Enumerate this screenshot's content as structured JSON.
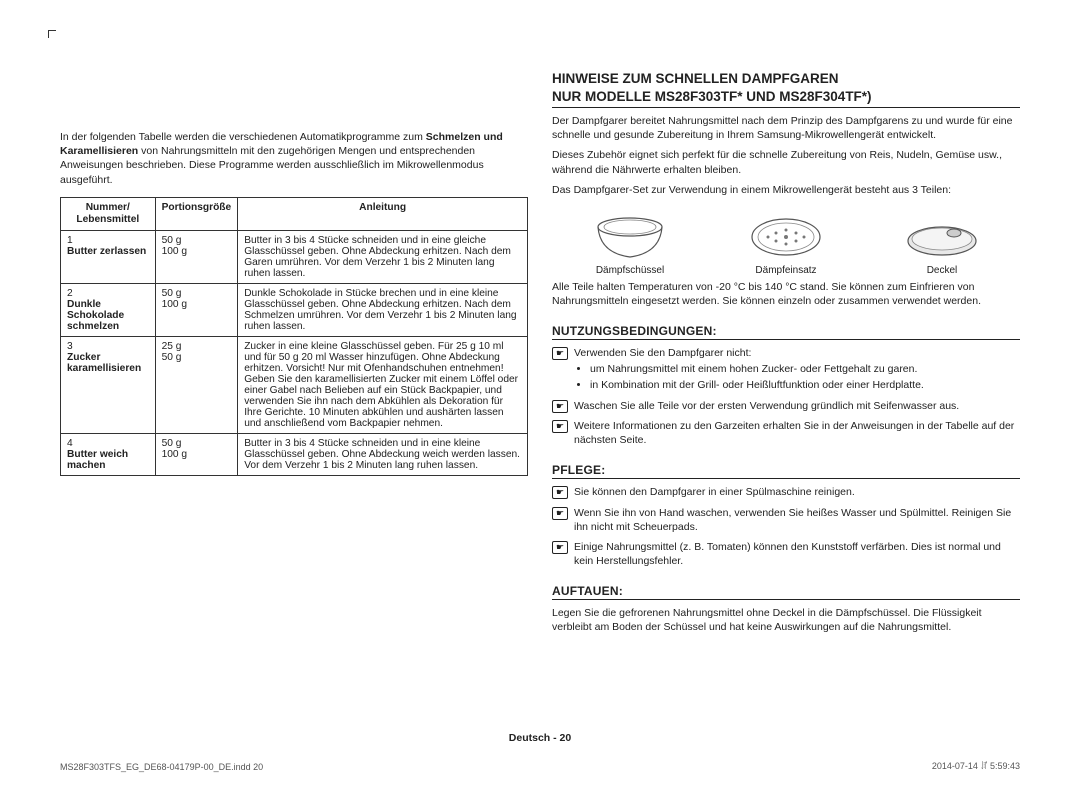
{
  "left": {
    "intro_pre": "In der folgenden Tabelle werden die verschiedenen Automatikprogramme zum ",
    "intro_bold": "Schmelzen und Karamellisieren",
    "intro_post": " von Nahrungsmitteln mit den zugehörigen Mengen und entsprechenden Anweisungen beschrieben. Diese Programme werden ausschließlich im Mikrowellenmodus ausgeführt.",
    "table": {
      "cols": [
        "Nummer/\nLebensmittel",
        "Portionsgröße",
        "Anleitung"
      ],
      "rows": [
        {
          "num": "1",
          "food": "Butter zerlassen",
          "portion": "50 g\n100 g",
          "instr": "Butter in 3 bis 4 Stücke schneiden und in eine gleiche Glasschüssel geben. Ohne Abdeckung erhitzen. Nach dem Garen umrühren. Vor dem Verzehr 1 bis 2 Minuten lang ruhen lassen."
        },
        {
          "num": "2",
          "food": "Dunkle Schokolade schmelzen",
          "portion": "50 g\n100 g",
          "instr": "Dunkle Schokolade in Stücke brechen und in eine kleine Glasschüssel geben. Ohne Abdeckung erhitzen. Nach dem Schmelzen umrühren. Vor dem Verzehr 1 bis 2 Minuten lang ruhen lassen."
        },
        {
          "num": "3",
          "food": "Zucker karamellisieren",
          "portion": "25 g\n50 g",
          "instr": "Zucker in eine kleine Glasschüssel geben. Für 25 g 10 ml und für 50 g 20 ml Wasser hinzufügen. Ohne Abdeckung erhitzen. Vorsicht! Nur mit Ofenhandschuhen entnehmen! Geben Sie den karamellisierten Zucker mit einem Löffel oder einer Gabel nach Belieben auf ein Stück Backpapier, und verwenden Sie ihn nach dem Abkühlen als Dekoration für Ihre Gerichte. 10 Minuten abkühlen und aushärten lassen und anschließend vom Backpapier nehmen."
        },
        {
          "num": "4",
          "food": "Butter weich machen",
          "portion": "50 g\n100 g",
          "instr": "Butter in 3 bis 4 Stücke schneiden und in eine kleine Glasschüssel geben. Ohne Abdeckung weich werden lassen. Vor dem Verzehr 1 bis 2 Minuten lang ruhen lassen."
        }
      ]
    }
  },
  "right": {
    "h1a": "HINWEISE ZUM SCHNELLEN DAMPFGAREN",
    "h1b": "NUR MODELLE MS28F303TF* UND MS28F304TF*)",
    "p1": "Der Dampfgarer bereitet Nahrungsmittel nach dem Prinzip des Dampfgarens zu und wurde für eine schnelle und gesunde Zubereitung in Ihrem Samsung-Mikrowellengerät entwickelt.",
    "p2": "Dieses Zubehör eignet sich perfekt für die schnelle Zubereitung von Reis, Nudeln, Gemüse usw., während die Nährwerte erhalten bleiben.",
    "p3": "Das Dampfgarer-Set zur Verwendung in einem Mikrowellengerät besteht aus 3 Teilen:",
    "parts": [
      "Dämpfschüssel",
      "Dämpfeinsatz",
      "Deckel"
    ],
    "p4": "Alle Teile halten Temperaturen von -20 °C bis 140 °C stand. Sie können zum Einfrieren von Nahrungsmitteln eingesetzt werden. Sie können einzeln oder zusammen verwendet werden.",
    "sec1": {
      "title": "NUTZUNGSBEDINGUNGEN:",
      "items": [
        {
          "text": "Verwenden Sie den Dampfgarer nicht:",
          "bullets": [
            "um Nahrungsmittel mit einem hohen Zucker- oder Fettgehalt zu garen.",
            "in Kombination mit der Grill- oder Heißluftfunktion oder einer Herdplatte."
          ]
        },
        {
          "text": "Waschen Sie alle Teile vor der ersten Verwendung gründlich mit Seifenwasser aus."
        },
        {
          "text": "Weitere Informationen zu den Garzeiten erhalten Sie in der Anweisungen in der Tabelle auf der nächsten Seite."
        }
      ]
    },
    "sec2": {
      "title": "PFLEGE:",
      "items": [
        {
          "text": "Sie können den Dampfgarer in einer Spülmaschine reinigen."
        },
        {
          "text": "Wenn Sie ihn von Hand waschen, verwenden Sie heißes Wasser und Spülmittel. Reinigen Sie ihn nicht mit Scheuerpads."
        },
        {
          "text": "Einige Nahrungsmittel (z. B. Tomaten) können den Kunststoff verfärben. Dies ist normal und kein Herstellungsfehler."
        }
      ]
    },
    "sec3": {
      "title": "AUFTAUEN:",
      "text": "Legen Sie die gefrorenen Nahrungsmittel ohne Deckel in die Dämpfschüssel. Die Flüssigkeit verbleibt am Boden der Schüssel und hat keine Auswirkungen auf die Nahrungsmittel."
    }
  },
  "footer": {
    "center_pre": "Deutsch - ",
    "center_num": "20",
    "left": "MS28F303TFS_EG_DE68-04179P-00_DE.indd   20",
    "right": "2014-07-14   ꄨ 5:59:43"
  },
  "style": {
    "text_color": "#222",
    "border_color": "#333",
    "body_fontsize": 10.5,
    "table_fontsize": 10.2,
    "heading_fontsize": 13.5,
    "subheading_fontsize": 12
  }
}
